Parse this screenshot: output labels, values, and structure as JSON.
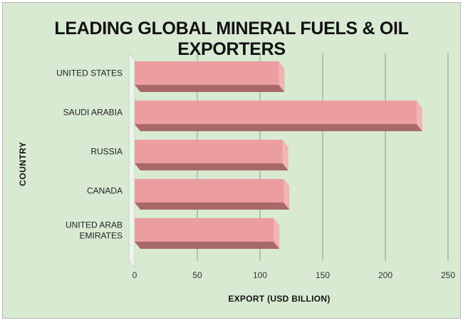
{
  "chart_data": {
    "type": "bar",
    "orientation": "horizontal",
    "title": "LEADING GLOBAL MINERAL FUELS & OIL EXPORTERS",
    "xlabel": "EXPORT (USD BILLION)",
    "ylabel": "COUNTRY",
    "categories": [
      "UNITED STATES",
      "SAUDI ARABIA",
      "RUSSIA",
      "CANADA",
      "UNITED ARAB EMIRATES"
    ],
    "category_lines": [
      [
        "UNITED STATES"
      ],
      [
        "SAUDI ARABIA"
      ],
      [
        "RUSSIA"
      ],
      [
        "CANADA"
      ],
      [
        "UNITED ARAB",
        "EMIRATES"
      ]
    ],
    "values": [
      115,
      225,
      118,
      119,
      111
    ],
    "xlim": [
      0,
      250
    ],
    "xticks": [
      0,
      50,
      100,
      150,
      200,
      250
    ],
    "grid": true,
    "style": "3d",
    "colors": {
      "bar_front": "#ec9d9d",
      "bar_bottom": "#a96868",
      "bar_side": "#f2b3b3",
      "background": "#d9ead3",
      "gridline": "#8a9a8a"
    }
  }
}
